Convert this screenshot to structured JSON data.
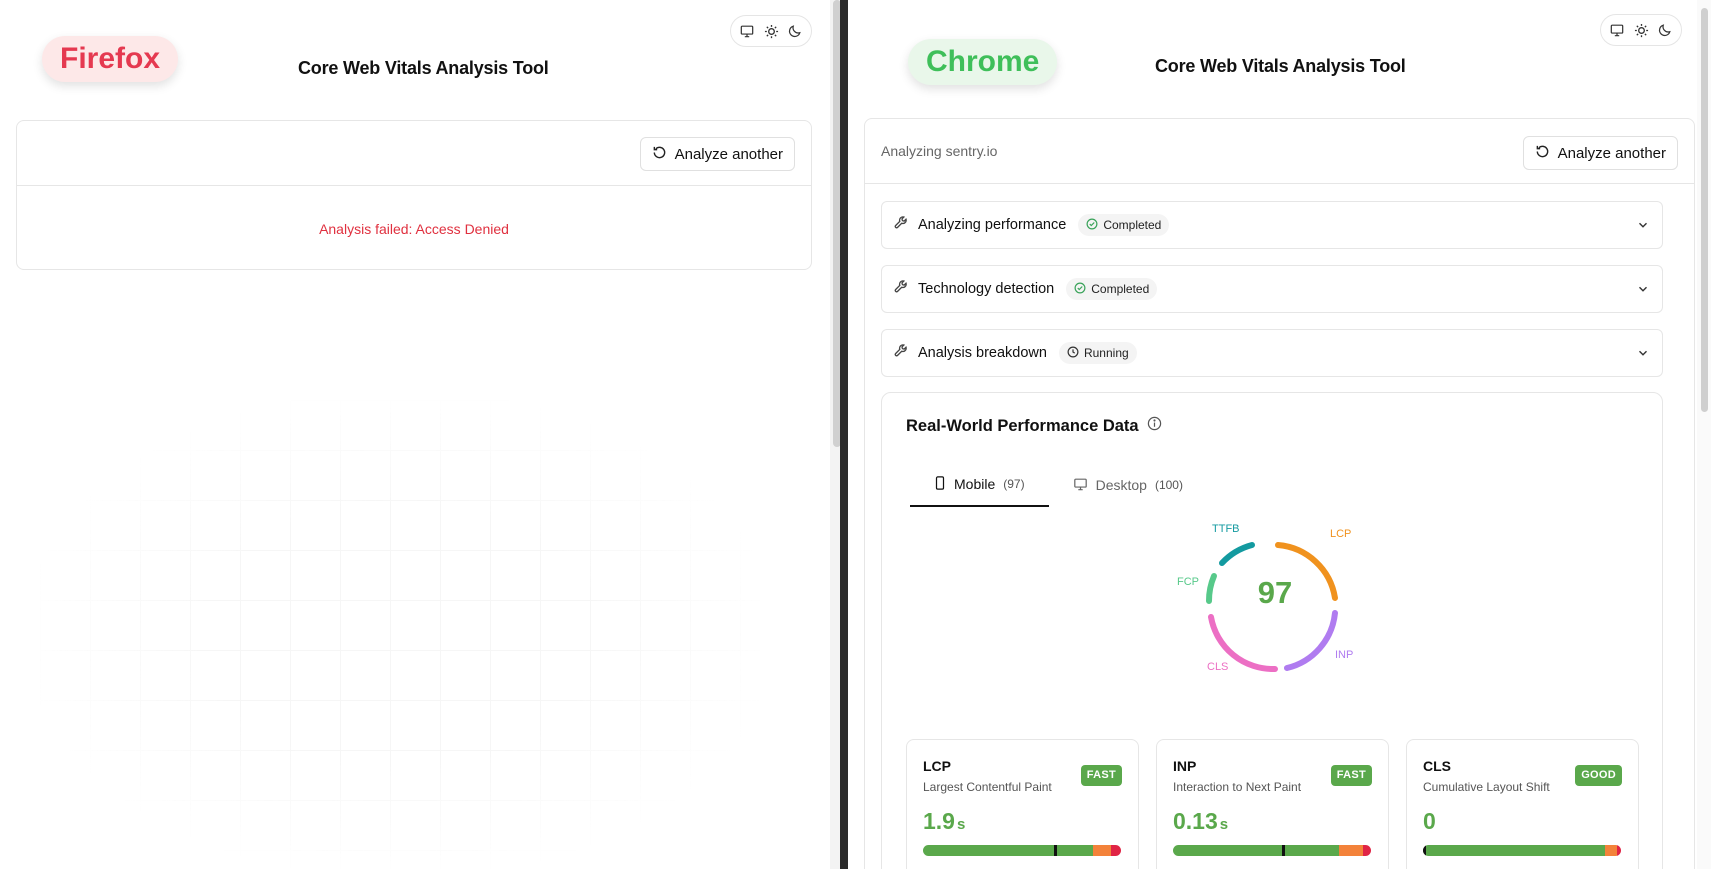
{
  "left_pane": {
    "browser": "Firefox",
    "title": "Core Web Vitals Analysis Tool",
    "analyze_button": "Analyze another",
    "error": "Analysis failed: Access Denied"
  },
  "right_pane": {
    "browser": "Chrome",
    "title": "Core Web Vitals Analysis Tool",
    "analyzing": "Analyzing sentry.io",
    "analyze_button": "Analyze another",
    "accordions": [
      {
        "label": "Analyzing performance",
        "status": "Completed",
        "status_icon": "check-circle-icon"
      },
      {
        "label": "Technology detection",
        "status": "Completed",
        "status_icon": "check-circle-icon"
      },
      {
        "label": "Analysis breakdown",
        "status": "Running",
        "status_icon": "clock-icon"
      }
    ],
    "perf": {
      "title": "Real-World Performance Data",
      "tabs": [
        {
          "label": "Mobile",
          "count": "(97)",
          "active": true
        },
        {
          "label": "Desktop",
          "count": "(100)",
          "active": false
        }
      ],
      "score": "97",
      "donut_segments": [
        {
          "label": "LCP",
          "color": "#f0921e"
        },
        {
          "label": "INP",
          "color": "#b07cf0"
        },
        {
          "label": "CLS",
          "color": "#ec6fc4"
        },
        {
          "label": "FCP",
          "color": "#57c98a"
        },
        {
          "label": "TTFB",
          "color": "#139aa0"
        }
      ],
      "metrics": [
        {
          "name": "LCP",
          "desc": "Largest Contentful Paint",
          "badge": "FAST",
          "value": "1.9",
          "unit": "s",
          "marker": 0.66
        },
        {
          "name": "INP",
          "desc": "Interaction to Next Paint",
          "badge": "FAST",
          "value": "0.13",
          "unit": "s",
          "marker": 0.55
        },
        {
          "name": "CLS",
          "desc": "Cumulative Layout Shift",
          "badge": "GOOD",
          "value": "0",
          "unit": "",
          "marker": 0.0
        }
      ]
    }
  },
  "colors": {
    "good": "#5aa84b",
    "needs_improvement": "#f3823a",
    "poor": "#e02445",
    "firefox": "#e53950",
    "chrome": "#3fbf5a",
    "error": "#e0303f"
  }
}
